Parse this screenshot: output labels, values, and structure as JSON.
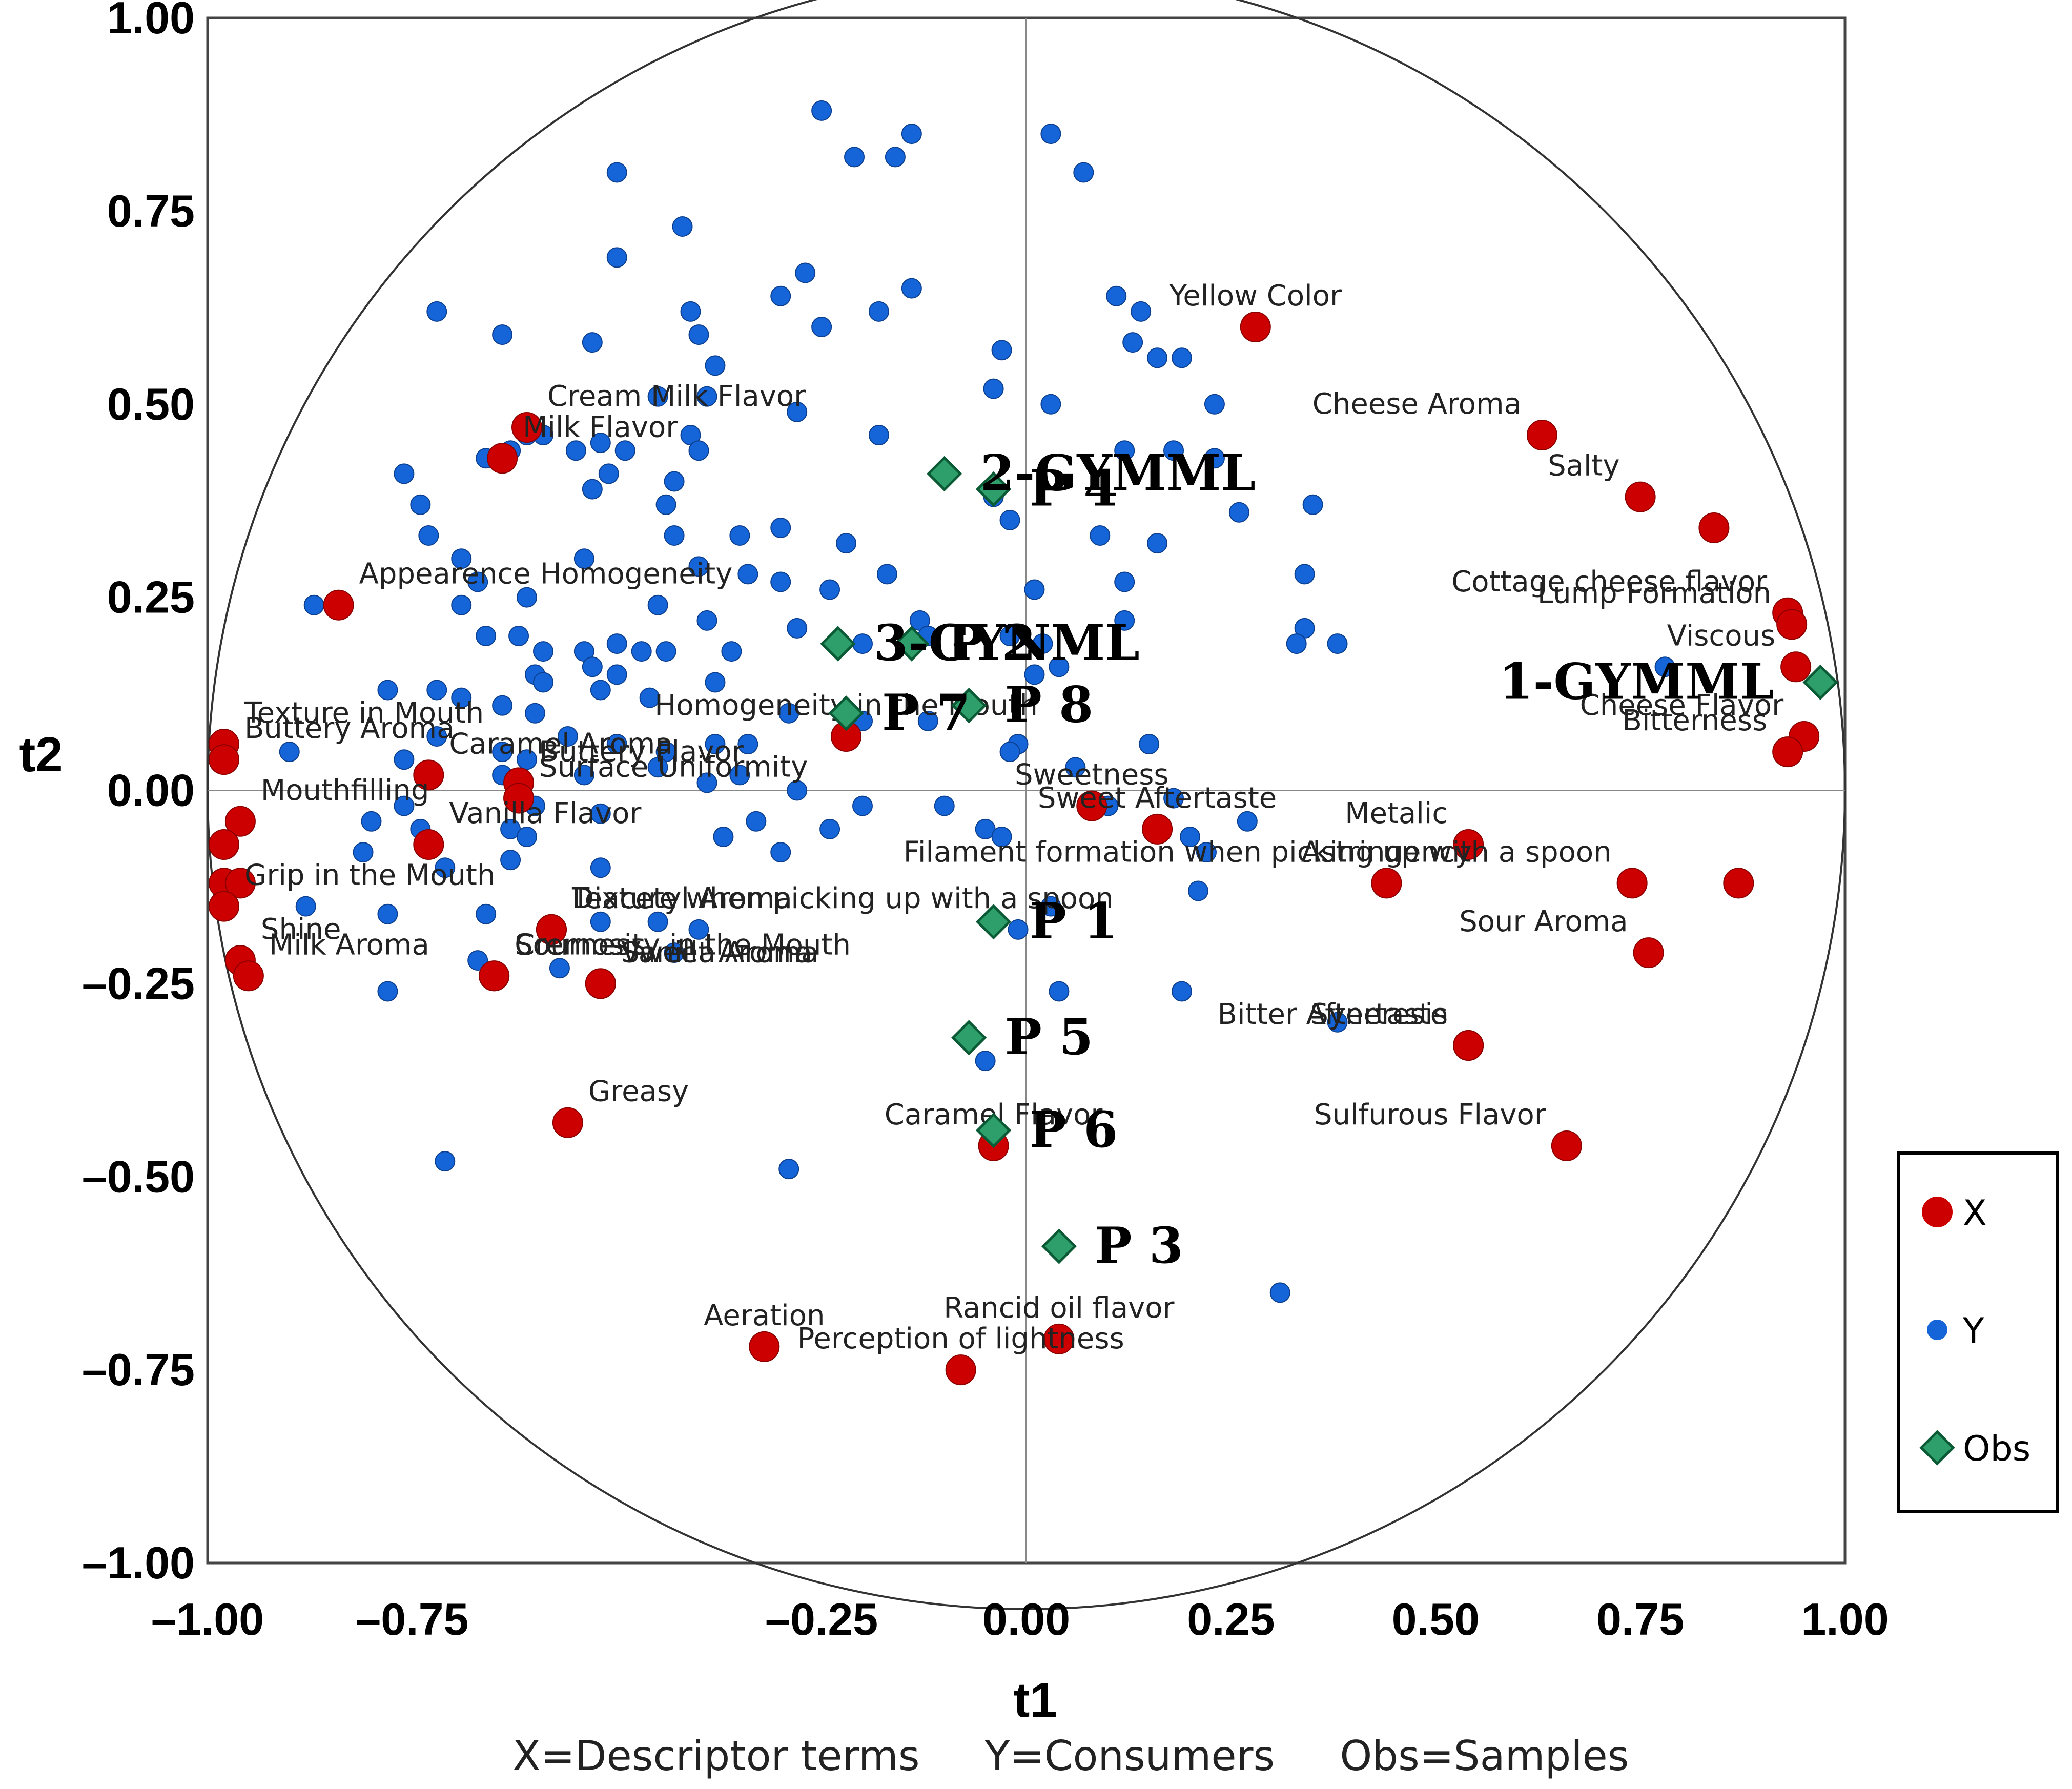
{
  "chart_data": {
    "type": "scatter",
    "xlabel": "t1",
    "ylabel": "t2",
    "xlim": [
      -1.0,
      1.0
    ],
    "ylim": [
      -1.0,
      1.0
    ],
    "x_ticks": [
      "–1.00",
      "–0.75",
      "–0.25",
      "0.00",
      "0.25",
      "0.50",
      "0.75",
      "1.00"
    ],
    "y_ticks": [
      "1.00",
      "0.75",
      "0.50",
      "0.25",
      "0.00",
      "–0.25",
      "–0.50",
      "–0.75",
      "–1.00"
    ],
    "legend": [
      {
        "key": "X",
        "color": "#cc0000",
        "marker": "circle"
      },
      {
        "key": "Y",
        "color": "#1565d8",
        "marker": "small-circle"
      },
      {
        "key": "Obs",
        "color": "#2e9e6a",
        "marker": "diamond"
      }
    ],
    "caption": "X=Descriptor terms     Y=Consumers     Obs=Samples",
    "descriptors": [
      {
        "label": "Yellow Color",
        "x": 0.28,
        "y": 0.6
      },
      {
        "label": "Cheese Aroma",
        "x": 0.63,
        "y": 0.46
      },
      {
        "label": "Salty",
        "x": 0.75,
        "y": 0.38
      },
      {
        "label": "",
        "x": 0.84,
        "y": 0.34
      },
      {
        "label": "Cottage cheese flavor",
        "x": 0.93,
        "y": 0.23
      },
      {
        "label": "Lump Formation",
        "x": 0.935,
        "y": 0.215
      },
      {
        "label": "Viscous",
        "x": 0.94,
        "y": 0.16
      },
      {
        "label": "Cheese Flavor",
        "x": 0.95,
        "y": 0.07
      },
      {
        "label": "Bitterness",
        "x": 0.93,
        "y": 0.05
      },
      {
        "label": "Metalic",
        "x": 0.54,
        "y": -0.07
      },
      {
        "label": "Astringency",
        "x": 0.44,
        "y": -0.12
      },
      {
        "label": "Filament formation when picking up with a spoon",
        "x": 0.74,
        "y": -0.12
      },
      {
        "label": "",
        "x": 0.87,
        "y": -0.12
      },
      {
        "label": "Sour Aroma",
        "x": 0.76,
        "y": -0.21
      },
      {
        "label": "Bitter Aftertaste",
        "x": 0.54,
        "y": -0.33
      },
      {
        "label": "Syneresis",
        "x": 0.54,
        "y": -0.33
      },
      {
        "label": "Sulfurous Flavor",
        "x": 0.66,
        "y": -0.46
      },
      {
        "label": "Sweetness",
        "x": 0.08,
        "y": -0.02
      },
      {
        "label": "Sweet Aftertaste",
        "x": 0.16,
        "y": -0.05
      },
      {
        "label": "Rancid oil flavor",
        "x": 0.04,
        "y": -0.71
      },
      {
        "label": "Caramel Flavor",
        "x": -0.04,
        "y": -0.46
      },
      {
        "label": "Perception of lightness",
        "x": -0.08,
        "y": -0.75
      },
      {
        "label": "Aeration",
        "x": -0.32,
        "y": -0.72
      },
      {
        "label": "Greasy",
        "x": -0.56,
        "y": -0.43
      },
      {
        "label": "Homogeneity in the Mouth",
        "x": -0.22,
        "y": 0.07
      },
      {
        "label": "Cream Milk Flavor",
        "x": -0.61,
        "y": 0.47
      },
      {
        "label": "Milk Flavor",
        "x": -0.64,
        "y": 0.43
      },
      {
        "label": "Appearence Homogeneity",
        "x": -0.84,
        "y": 0.24
      },
      {
        "label": "Texture in Mouth",
        "x": -0.98,
        "y": 0.06
      },
      {
        "label": "Buttery Aroma",
        "x": -0.98,
        "y": 0.04
      },
      {
        "label": "Buttery Flavor",
        "x": -0.62,
        "y": 0.01
      },
      {
        "label": "Caramel Aroma",
        "x": -0.73,
        "y": 0.02
      },
      {
        "label": "Surface Uniformity",
        "x": -0.62,
        "y": -0.01
      },
      {
        "label": "Mouthfilling",
        "x": -0.96,
        "y": -0.04
      },
      {
        "label": "Vanilla Flavor",
        "x": -0.73,
        "y": -0.07
      },
      {
        "label": "",
        "x": -0.98,
        "y": -0.07
      },
      {
        "label": "",
        "x": -0.98,
        "y": -0.12
      },
      {
        "label": "",
        "x": -0.96,
        "y": -0.12
      },
      {
        "label": "Grip in the Mouth",
        "x": -0.98,
        "y": -0.15
      },
      {
        "label": "Texture when picking up with a spoon",
        "x": -0.58,
        "y": -0.18
      },
      {
        "label": "Diacetyl Aroma",
        "x": -0.58,
        "y": -0.18
      },
      {
        "label": "Cremosity in the Mouth",
        "x": -0.65,
        "y": -0.24
      },
      {
        "label": "Shine",
        "x": -0.96,
        "y": -0.22
      },
      {
        "label": "Sourness",
        "x": -0.65,
        "y": -0.24
      },
      {
        "label": "Milk Aroma",
        "x": -0.95,
        "y": -0.24
      },
      {
        "label": "Sweet Aroma",
        "x": -0.52,
        "y": -0.25
      },
      {
        "label": "Vanilla Aroma",
        "x": -0.52,
        "y": -0.25
      }
    ],
    "samples": [
      {
        "label": "2-GYMML",
        "x": -0.1,
        "y": 0.41
      },
      {
        "label": "P 4",
        "x": -0.04,
        "y": 0.39
      },
      {
        "label": "3-GYNML",
        "x": -0.23,
        "y": 0.19
      },
      {
        "label": "P 2",
        "x": -0.14,
        "y": 0.19
      },
      {
        "label": "P 7",
        "x": -0.22,
        "y": 0.1
      },
      {
        "label": "P 8",
        "x": -0.07,
        "y": 0.11
      },
      {
        "label": "1-GYMML",
        "x": 0.97,
        "y": 0.14
      },
      {
        "label": "P 1",
        "x": -0.04,
        "y": -0.17
      },
      {
        "label": "P 5",
        "x": -0.07,
        "y": -0.32
      },
      {
        "label": "P 6",
        "x": -0.04,
        "y": -0.44
      },
      {
        "label": "P 3",
        "x": 0.04,
        "y": -0.59
      }
    ],
    "consumers": [
      [
        -0.25,
        0.88
      ],
      [
        -0.21,
        0.82
      ],
      [
        -0.16,
        0.82
      ],
      [
        -0.14,
        0.85
      ],
      [
        0.03,
        0.85
      ],
      [
        0.07,
        0.8
      ],
      [
        -0.5,
        0.8
      ],
      [
        -0.42,
        0.73
      ],
      [
        -0.5,
        0.69
      ],
      [
        -0.27,
        0.67
      ],
      [
        -0.14,
        0.65
      ],
      [
        -0.3,
        0.64
      ],
      [
        -0.41,
        0.62
      ],
      [
        -0.4,
        0.59
      ],
      [
        -0.25,
        0.6
      ],
      [
        -0.18,
        0.62
      ],
      [
        0.11,
        0.64
      ],
      [
        0.14,
        0.62
      ],
      [
        -0.72,
        0.62
      ],
      [
        -0.64,
        0.59
      ],
      [
        -0.53,
        0.58
      ],
      [
        -0.38,
        0.55
      ],
      [
        -0.03,
        0.57
      ],
      [
        0.13,
        0.58
      ],
      [
        0.16,
        0.56
      ],
      [
        0.19,
        0.56
      ],
      [
        -0.45,
        0.51
      ],
      [
        -0.39,
        0.51
      ],
      [
        -0.28,
        0.49
      ],
      [
        -0.04,
        0.52
      ],
      [
        0.03,
        0.5
      ],
      [
        0.23,
        0.5
      ],
      [
        -0.61,
        0.46
      ],
      [
        -0.59,
        0.46
      ],
      [
        -0.52,
        0.45
      ],
      [
        -0.41,
        0.46
      ],
      [
        -0.4,
        0.44
      ],
      [
        -0.49,
        0.44
      ],
      [
        -0.66,
        0.43
      ],
      [
        -0.63,
        0.44
      ],
      [
        -0.55,
        0.44
      ],
      [
        -0.18,
        0.46
      ],
      [
        0.12,
        0.44
      ],
      [
        0.18,
        0.44
      ],
      [
        0.23,
        0.43
      ],
      [
        -0.76,
        0.41
      ],
      [
        -0.74,
        0.37
      ],
      [
        -0.53,
        0.39
      ],
      [
        -0.51,
        0.41
      ],
      [
        -0.43,
        0.4
      ],
      [
        -0.44,
        0.37
      ],
      [
        -0.04,
        0.38
      ],
      [
        -0.02,
        0.35
      ],
      [
        0.26,
        0.36
      ],
      [
        0.35,
        0.37
      ],
      [
        -0.73,
        0.33
      ],
      [
        -0.43,
        0.33
      ],
      [
        -0.35,
        0.33
      ],
      [
        -0.3,
        0.34
      ],
      [
        -0.22,
        0.32
      ],
      [
        0.09,
        0.33
      ],
      [
        0.16,
        0.32
      ],
      [
        -0.69,
        0.3
      ],
      [
        -0.67,
        0.27
      ],
      [
        -0.54,
        0.3
      ],
      [
        -0.4,
        0.29
      ],
      [
        -0.34,
        0.28
      ],
      [
        -0.3,
        0.27
      ],
      [
        -0.24,
        0.26
      ],
      [
        -0.17,
        0.28
      ],
      [
        0.01,
        0.26
      ],
      [
        0.12,
        0.27
      ],
      [
        0.34,
        0.28
      ],
      [
        -0.87,
        0.24
      ],
      [
        -0.69,
        0.24
      ],
      [
        -0.61,
        0.25
      ],
      [
        -0.45,
        0.24
      ],
      [
        -0.39,
        0.22
      ],
      [
        -0.28,
        0.21
      ],
      [
        -0.13,
        0.22
      ],
      [
        -0.02,
        0.2
      ],
      [
        0.12,
        0.22
      ],
      [
        0.34,
        0.21
      ],
      [
        -0.66,
        0.2
      ],
      [
        -0.62,
        0.2
      ],
      [
        -0.59,
        0.18
      ],
      [
        -0.54,
        0.18
      ],
      [
        -0.5,
        0.19
      ],
      [
        -0.47,
        0.18
      ],
      [
        -0.44,
        0.18
      ],
      [
        -0.53,
        0.16
      ],
      [
        -0.5,
        0.15
      ],
      [
        -0.36,
        0.18
      ],
      [
        -0.2,
        0.19
      ],
      [
        -0.12,
        0.2
      ],
      [
        0.02,
        0.19
      ],
      [
        0.33,
        0.19
      ],
      [
        0.38,
        0.19
      ],
      [
        -0.6,
        0.15
      ],
      [
        -0.59,
        0.14
      ],
      [
        -0.52,
        0.13
      ],
      [
        -0.46,
        0.12
      ],
      [
        -0.38,
        0.14
      ],
      [
        0.01,
        0.15
      ],
      [
        0.04,
        0.16
      ],
      [
        -0.78,
        0.13
      ],
      [
        -0.72,
        0.13
      ],
      [
        -0.69,
        0.12
      ],
      [
        -0.64,
        0.11
      ],
      [
        -0.6,
        0.1
      ],
      [
        -0.29,
        0.1
      ],
      [
        -0.2,
        0.09
      ],
      [
        -0.12,
        0.09
      ],
      [
        -0.01,
        0.06
      ],
      [
        -0.72,
        0.07
      ],
      [
        -0.56,
        0.07
      ],
      [
        -0.5,
        0.06
      ],
      [
        -0.38,
        0.06
      ],
      [
        -0.44,
        0.05
      ],
      [
        -0.34,
        0.06
      ],
      [
        -0.9,
        0.05
      ],
      [
        -0.76,
        0.04
      ],
      [
        -0.64,
        0.05
      ],
      [
        -0.61,
        0.04
      ],
      [
        -0.35,
        0.02
      ],
      [
        -0.02,
        0.05
      ],
      [
        -0.64,
        0.02
      ],
      [
        -0.54,
        0.02
      ],
      [
        -0.45,
        0.03
      ],
      [
        -0.39,
        0.01
      ],
      [
        -0.28,
        0.0
      ],
      [
        0.06,
        0.03
      ],
      [
        0.15,
        0.06
      ],
      [
        -0.76,
        -0.02
      ],
      [
        -0.6,
        -0.02
      ],
      [
        -0.52,
        -0.03
      ],
      [
        -0.33,
        -0.04
      ],
      [
        -0.2,
        -0.02
      ],
      [
        -0.1,
        -0.02
      ],
      [
        0.1,
        -0.02
      ],
      [
        0.18,
        -0.01
      ],
      [
        -0.8,
        -0.04
      ],
      [
        -0.74,
        -0.05
      ],
      [
        -0.63,
        -0.05
      ],
      [
        -0.61,
        -0.06
      ],
      [
        -0.37,
        -0.06
      ],
      [
        -0.24,
        -0.05
      ],
      [
        -0.05,
        -0.05
      ],
      [
        -0.03,
        -0.06
      ],
      [
        0.2,
        -0.06
      ],
      [
        0.27,
        -0.04
      ],
      [
        -0.81,
        -0.08
      ],
      [
        -0.71,
        -0.1
      ],
      [
        -0.63,
        -0.09
      ],
      [
        -0.52,
        -0.1
      ],
      [
        -0.3,
        -0.08
      ],
      [
        0.22,
        -0.08
      ],
      [
        -0.88,
        -0.15
      ],
      [
        -0.78,
        -0.16
      ],
      [
        -0.66,
        -0.16
      ],
      [
        -0.52,
        -0.17
      ],
      [
        -0.45,
        -0.17
      ],
      [
        -0.4,
        -0.18
      ],
      [
        -0.01,
        -0.18
      ],
      [
        0.03,
        -0.15
      ],
      [
        0.21,
        -0.13
      ],
      [
        -0.67,
        -0.22
      ],
      [
        -0.57,
        -0.23
      ],
      [
        -0.43,
        -0.21
      ],
      [
        -0.78,
        -0.26
      ],
      [
        0.04,
        -0.26
      ],
      [
        0.19,
        -0.26
      ],
      [
        0.38,
        -0.3
      ],
      [
        -0.05,
        -0.35
      ],
      [
        -0.71,
        -0.48
      ],
      [
        -0.29,
        -0.49
      ],
      [
        0.31,
        -0.65
      ],
      [
        0.78,
        0.16
      ]
    ]
  }
}
